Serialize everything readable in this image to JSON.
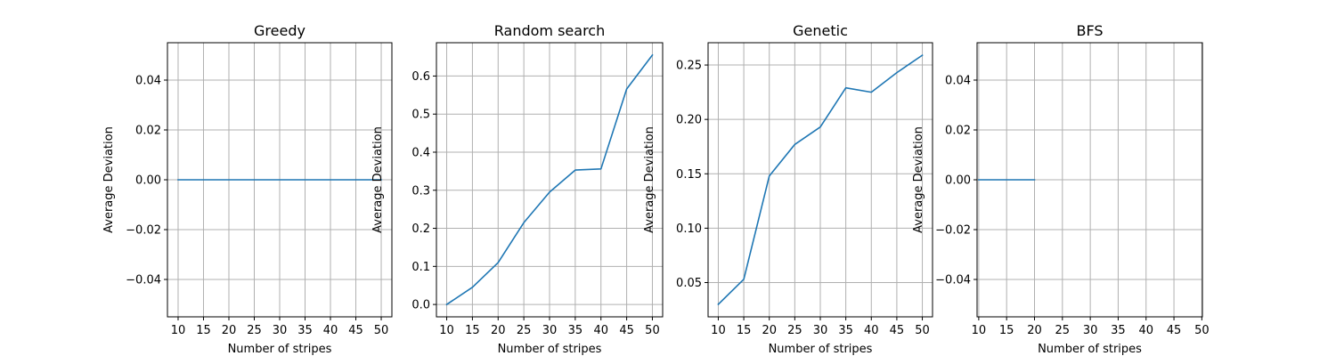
{
  "series_color": "#1f77b4",
  "chart_data": [
    {
      "type": "line",
      "title": "Greedy",
      "xlabel": "Number of stripes",
      "ylabel": "Average Deviation",
      "x": [
        10,
        15,
        20,
        25,
        30,
        35,
        40,
        45,
        50
      ],
      "y": [
        0,
        0,
        0,
        0,
        0,
        0,
        0,
        0,
        0
      ],
      "xlim": [
        7.9,
        52.1
      ],
      "ylim": [
        -0.055,
        0.055
      ],
      "xticks": [
        10,
        15,
        20,
        25,
        30,
        35,
        40,
        45,
        50
      ],
      "xtick_labels": [
        "10",
        "15",
        "20",
        "25",
        "30",
        "35",
        "40",
        "45",
        "50"
      ],
      "yticks": [
        -0.04,
        -0.02,
        0.0,
        0.02,
        0.04
      ],
      "ytick_labels": [
        "−0.04",
        "−0.02",
        "0.00",
        "0.02",
        "0.04"
      ],
      "grid": true
    },
    {
      "type": "line",
      "title": "Random search",
      "xlabel": "Number of stripes",
      "ylabel": "Average Deviation",
      "x": [
        10,
        15,
        20,
        25,
        30,
        35,
        40,
        45,
        50
      ],
      "y": [
        0.0,
        0.045,
        0.11,
        0.215,
        0.295,
        0.353,
        0.356,
        0.566,
        0.655
      ],
      "xlim": [
        8.0,
        52.0
      ],
      "ylim": [
        -0.0325,
        0.6875
      ],
      "xticks": [
        10,
        15,
        20,
        25,
        30,
        35,
        40,
        45,
        50
      ],
      "xtick_labels": [
        "10",
        "15",
        "20",
        "25",
        "30",
        "35",
        "40",
        "45",
        "50"
      ],
      "yticks": [
        0.0,
        0.1,
        0.2,
        0.3,
        0.4,
        0.5,
        0.6
      ],
      "ytick_labels": [
        "0.0",
        "0.1",
        "0.2",
        "0.3",
        "0.4",
        "0.5",
        "0.6"
      ],
      "grid": true
    },
    {
      "type": "line",
      "title": "Genetic",
      "xlabel": "Number of stripes",
      "ylabel": "Average Deviation",
      "x": [
        10,
        15,
        20,
        25,
        30,
        35,
        40,
        45,
        50
      ],
      "y": [
        0.03,
        0.053,
        0.148,
        0.177,
        0.193,
        0.229,
        0.225,
        0.243,
        0.259
      ],
      "xlim": [
        8.0,
        52.0
      ],
      "ylim": [
        0.0185,
        0.2705
      ],
      "xticks": [
        10,
        15,
        20,
        25,
        30,
        35,
        40,
        45,
        50
      ],
      "xtick_labels": [
        "10",
        "15",
        "20",
        "25",
        "30",
        "35",
        "40",
        "45",
        "50"
      ],
      "yticks": [
        0.05,
        0.1,
        0.15,
        0.2,
        0.25
      ],
      "ytick_labels": [
        "0.05",
        "0.10",
        "0.15",
        "0.20",
        "0.25"
      ],
      "grid": true
    },
    {
      "type": "line",
      "title": "BFS",
      "xlabel": "Number of stripes",
      "ylabel": "Average Deviation",
      "x": [
        10,
        15,
        20
      ],
      "y": [
        0,
        0,
        0
      ],
      "xlim": [
        9.7,
        50.1
      ],
      "ylim": [
        -0.055,
        0.055
      ],
      "xticks": [
        10,
        15,
        20,
        25,
        30,
        35,
        40,
        45,
        50
      ],
      "xtick_labels": [
        "10",
        "15",
        "20",
        "25",
        "30",
        "35",
        "40",
        "45",
        "50"
      ],
      "yticks": [
        -0.04,
        -0.02,
        0.0,
        0.02,
        0.04
      ],
      "ytick_labels": [
        "−0.04",
        "−0.02",
        "0.00",
        "0.02",
        "0.04"
      ],
      "grid": true
    }
  ]
}
